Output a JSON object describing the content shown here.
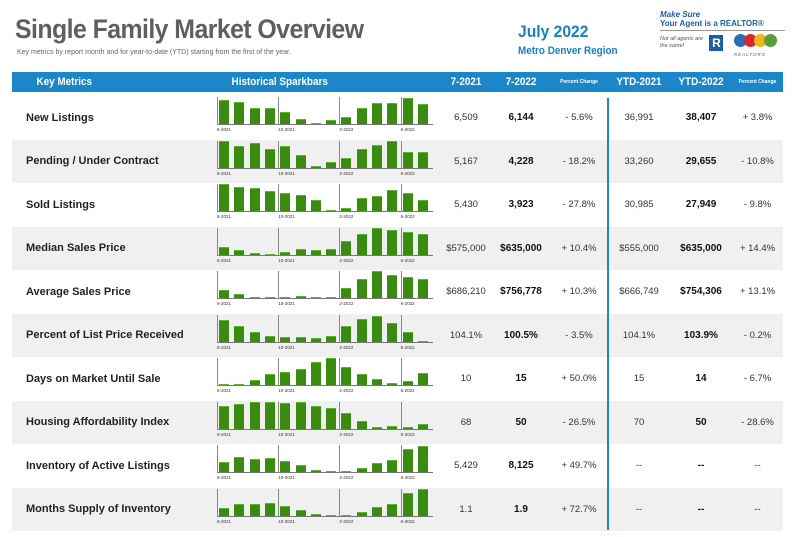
{
  "header": {
    "title": "Single Family Market Overview",
    "subtitle": "Key metrics by report month and for year-to-date (YTD) starting from the first of the year.",
    "month": "July 2022",
    "region": "Metro Denver Region"
  },
  "logo": {
    "line1": "Make Sure",
    "line2": "Your Agent is a REALTOR®",
    "line3": "Not all agents are the same!",
    "r": "R",
    "realtors": "REALTORS"
  },
  "columns": {
    "metric": "Key Metrics",
    "spark": "Historical Sparkbars",
    "c1": "7-2021",
    "c2": "7-2022",
    "c3": "Percent Change",
    "c4": "YTD-2021",
    "c5": "YTD-2022",
    "c6": "Percent Change"
  },
  "spark_labels": [
    "6-2021",
    "10-2021",
    "2-2022",
    "6-2022"
  ],
  "colors": {
    "header_blue": "#1b86c8",
    "bar_green": "#3a8c10",
    "title_gray": "#5f5f5f"
  },
  "rows": [
    {
      "name": "New Listings",
      "v": [
        "6,509",
        "6,144",
        "- 5.6%",
        "36,991",
        "38,407",
        "+ 3.8%"
      ],
      "bars": [
        0.9,
        0.82,
        0.6,
        0.6,
        0.45,
        0.2,
        0.03,
        0.16,
        0.27,
        0.6,
        0.78,
        0.8,
        0.98,
        0.75
      ]
    },
    {
      "name": "Pending / Under Contract",
      "v": [
        "5,167",
        "4,228",
        "- 18.2%",
        "33,260",
        "29,655",
        "- 10.8%"
      ],
      "bars": [
        0.98,
        0.82,
        0.9,
        0.7,
        0.8,
        0.48,
        0.05,
        0.22,
        0.35,
        0.7,
        0.85,
        1.0,
        0.6,
        0.6
      ]
    },
    {
      "name": "Sold Listings",
      "v": [
        "5,430",
        "3,923",
        "- 27.8%",
        "30,985",
        "27,949",
        "- 9.8%"
      ],
      "bars": [
        1.0,
        0.9,
        0.88,
        0.75,
        0.68,
        0.62,
        0.42,
        0.02,
        0.12,
        0.48,
        0.55,
        0.78,
        0.68,
        0.4
      ]
    },
    {
      "name": "Median Sales Price",
      "v": [
        "$575,000",
        "$635,000",
        "+ 10.4%",
        "$555,000",
        "$635,000",
        "+ 14.4%"
      ],
      "bars": [
        0.27,
        0.18,
        0.08,
        0.02,
        0.12,
        0.2,
        0.18,
        0.2,
        0.52,
        0.76,
        1.0,
        0.9,
        0.86,
        0.76
      ]
    },
    {
      "name": "Average Sales Price",
      "v": [
        "$686,210",
        "$756,778",
        "+ 10.3%",
        "$666,749",
        "$754,306",
        "+ 13.1%"
      ],
      "bars": [
        0.3,
        0.15,
        0.04,
        0.04,
        0.06,
        0.08,
        0.06,
        0.03,
        0.38,
        0.7,
        1.0,
        0.85,
        0.78,
        0.7
      ]
    },
    {
      "name": "Percent of List Price Received",
      "v": [
        "104.1%",
        "100.5%",
        "- 3.5%",
        "104.1%",
        "103.9%",
        "- 0.2%"
      ],
      "bars": [
        0.8,
        0.6,
        0.35,
        0.22,
        0.18,
        0.18,
        0.15,
        0.22,
        0.6,
        0.85,
        0.95,
        0.7,
        0.35,
        0.02
      ]
    },
    {
      "name": "Days on Market Until Sale",
      "v": [
        "10",
        "15",
        "+ 50.0%",
        "15",
        "14",
        "- 6.7%"
      ],
      "bars": [
        0.05,
        0.02,
        0.18,
        0.4,
        0.5,
        0.6,
        0.88,
        1.0,
        0.66,
        0.42,
        0.22,
        0.1,
        0.16,
        0.45
      ]
    },
    {
      "name": "Housing Affordability Index",
      "v": [
        "68",
        "50",
        "- 26.5%",
        "70",
        "50",
        "- 28.6%"
      ],
      "bars": [
        0.85,
        0.92,
        0.98,
        0.98,
        0.95,
        0.98,
        0.85,
        0.78,
        0.6,
        0.3,
        0.05,
        0.12,
        0.06,
        0.18
      ]
    },
    {
      "name": "Inventory of Active Listings",
      "v": [
        "5,429",
        "8,125",
        "+ 49.7%",
        "--",
        "--",
        "--"
      ],
      "bars": [
        0.38,
        0.55,
        0.48,
        0.52,
        0.4,
        0.26,
        0.1,
        0.05,
        0.02,
        0.15,
        0.34,
        0.45,
        0.85,
        0.96
      ]
    },
    {
      "name": "Months Supply of Inventory",
      "v": [
        "1.1",
        "1.9",
        "+ 72.7%",
        "--",
        "--",
        "--"
      ],
      "bars": [
        0.3,
        0.45,
        0.42,
        0.48,
        0.38,
        0.23,
        0.08,
        0.03,
        0.01,
        0.13,
        0.32,
        0.43,
        0.85,
        1.0
      ]
    }
  ]
}
